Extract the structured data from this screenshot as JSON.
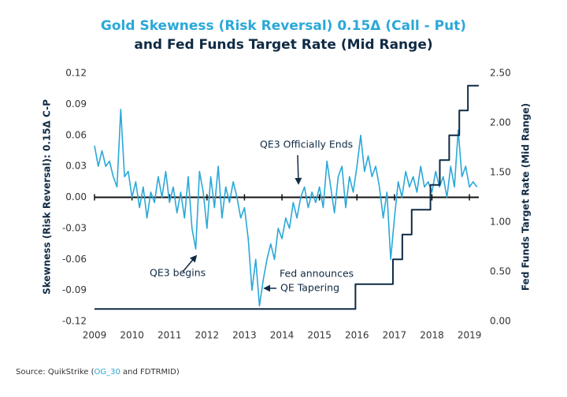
{
  "chart_data": {
    "type": "dual_axis_line",
    "title": "Gold Skewness (Risk Reversal) 0.15Δ (Call - Put)",
    "subtitle": "and Fed Funds Target Rate (Mid Range)",
    "ylabel": "Skewness (Risk Reversal): 0.15Δ C-P",
    "y2label": "Fed Funds Target Rate (Mid Range)",
    "xlim": [
      2009,
      2019.25
    ],
    "xticks": [
      2009,
      2010,
      2011,
      2012,
      2013,
      2014,
      2015,
      2016,
      2017,
      2018,
      2019
    ],
    "ylim": [
      -0.12,
      0.12
    ],
    "yticks": [
      -0.12,
      -0.09,
      -0.06,
      -0.03,
      {
        "value": 0,
        "label": "0.00"
      },
      0.03,
      0.06,
      0.09,
      0.12
    ],
    "y2lim": [
      0,
      2.5
    ],
    "y2ticks": [
      {
        "value": 0,
        "label": "0.00"
      },
      {
        "value": 0.5,
        "label": "0.50"
      },
      {
        "value": 1,
        "label": "1.00"
      },
      {
        "value": 1.5,
        "label": "1.50"
      },
      {
        "value": 2,
        "label": "2.00"
      },
      {
        "value": 2.5,
        "label": "2.50"
      }
    ],
    "series": [
      {
        "name": "Gold Skewness 0.15Δ C-P",
        "color": "#2aa8d8",
        "axis": "y",
        "x": [
          2009.0,
          2009.1,
          2009.2,
          2009.3,
          2009.4,
          2009.5,
          2009.6,
          2009.7,
          2009.8,
          2009.9,
          2010.0,
          2010.1,
          2010.2,
          2010.3,
          2010.4,
          2010.5,
          2010.6,
          2010.7,
          2010.8,
          2010.9,
          2011.0,
          2011.1,
          2011.2,
          2011.3,
          2011.4,
          2011.5,
          2011.6,
          2011.7,
          2011.8,
          2011.9,
          2012.0,
          2012.1,
          2012.2,
          2012.3,
          2012.4,
          2012.5,
          2012.6,
          2012.7,
          2012.8,
          2012.9,
          2013.0,
          2013.1,
          2013.2,
          2013.3,
          2013.4,
          2013.5,
          2013.6,
          2013.7,
          2013.8,
          2013.9,
          2014.0,
          2014.1,
          2014.2,
          2014.3,
          2014.4,
          2014.5,
          2014.6,
          2014.7,
          2014.8,
          2014.9,
          2015.0,
          2015.1,
          2015.2,
          2015.3,
          2015.4,
          2015.5,
          2015.6,
          2015.7,
          2015.8,
          2015.9,
          2016.0,
          2016.1,
          2016.2,
          2016.3,
          2016.4,
          2016.5,
          2016.6,
          2016.7,
          2016.8,
          2016.9,
          2017.0,
          2017.1,
          2017.2,
          2017.3,
          2017.4,
          2017.5,
          2017.6,
          2017.7,
          2017.8,
          2017.9,
          2018.0,
          2018.1,
          2018.2,
          2018.3,
          2018.4,
          2018.5,
          2018.6,
          2018.7,
          2018.8,
          2018.9,
          2019.0,
          2019.1,
          2019.2
        ],
        "values": [
          0.05,
          0.03,
          0.045,
          0.03,
          0.035,
          0.02,
          0.01,
          0.085,
          0.02,
          0.025,
          0.0,
          0.015,
          -0.01,
          0.01,
          -0.02,
          0.005,
          -0.005,
          0.02,
          0.0,
          0.025,
          -0.005,
          0.01,
          -0.015,
          0.005,
          -0.02,
          0.02,
          -0.03,
          -0.05,
          0.025,
          0.005,
          -0.03,
          0.02,
          -0.01,
          0.03,
          -0.02,
          0.01,
          -0.005,
          0.015,
          0.0,
          -0.02,
          -0.01,
          -0.04,
          -0.09,
          -0.06,
          -0.105,
          -0.08,
          -0.06,
          -0.045,
          -0.06,
          -0.03,
          -0.04,
          -0.02,
          -0.03,
          -0.005,
          -0.02,
          0.0,
          0.01,
          -0.01,
          0.005,
          -0.005,
          0.01,
          -0.01,
          0.035,
          0.01,
          -0.015,
          0.02,
          0.03,
          -0.01,
          0.02,
          0.005,
          0.03,
          0.06,
          0.025,
          0.04,
          0.02,
          0.03,
          0.01,
          -0.02,
          0.005,
          -0.06,
          -0.02,
          0.015,
          0.0,
          0.025,
          0.01,
          0.02,
          0.005,
          0.03,
          0.01,
          0.015,
          0.005,
          0.025,
          0.01,
          0.02,
          0.0,
          0.03,
          0.01,
          0.065,
          0.02,
          0.03,
          0.01,
          0.015,
          0.01
        ]
      },
      {
        "name": "Fed Funds Target Rate (Mid Range)",
        "color": "#0f2a44",
        "axis": "y2",
        "step": true,
        "x": [
          2009.0,
          2015.96,
          2016.96,
          2017.21,
          2017.46,
          2017.96,
          2018.21,
          2018.46,
          2018.73,
          2018.96,
          2019.25
        ],
        "values": [
          0.125,
          0.375,
          0.625,
          0.875,
          1.125,
          1.375,
          1.625,
          1.875,
          2.125,
          2.375,
          2.375
        ]
      }
    ],
    "annotations": [
      {
        "text": "QE3 Officially Ends",
        "x": 2014.6,
        "y": 0.005
      },
      {
        "text": "QE3 begins",
        "x": 2011.7,
        "y": -0.057
      },
      {
        "text": "Fed announces",
        "x": 2013.4,
        "y": -0.088
      },
      {
        "text": "QE Tapering",
        "x": 2013.4,
        "y": -0.088
      }
    ],
    "source": {
      "prefix": "Source: QuikStrike (",
      "link": "OG_30",
      "suffix": " and FDTRMID)"
    }
  }
}
